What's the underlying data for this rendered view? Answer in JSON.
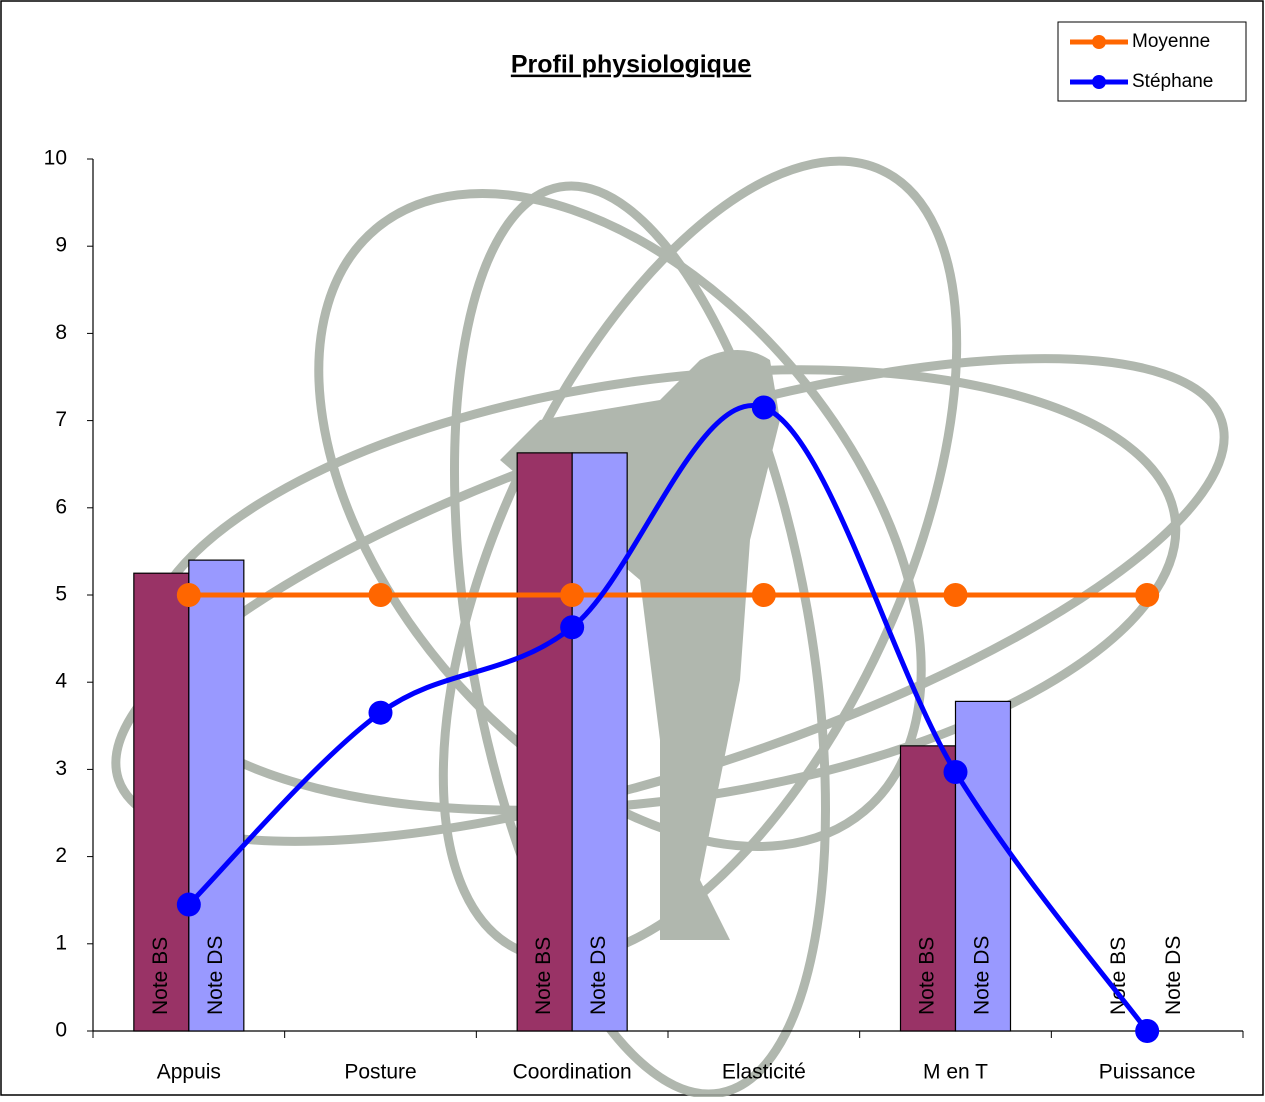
{
  "chart_data": {
    "type": "bar",
    "title": "Profil physiologique",
    "categories": [
      "Appuis",
      "Posture",
      "Coordination",
      "Elasticité",
      "M en T",
      "Puissance"
    ],
    "ylim": [
      0,
      10
    ],
    "yticks": [
      0,
      1,
      2,
      3,
      4,
      5,
      6,
      7,
      8,
      9,
      10
    ],
    "smooth": true,
    "legend": "top-right",
    "series": [
      {
        "name": "Note BS",
        "type": "bar",
        "color": "#993366",
        "values": [
          5.25,
          null,
          6.63,
          null,
          3.27,
          0
        ],
        "show_in_legend": false
      },
      {
        "name": "Note DS",
        "type": "bar",
        "color": "#9999ff",
        "values": [
          5.4,
          null,
          6.63,
          null,
          3.78,
          0
        ],
        "show_in_legend": false
      },
      {
        "name": "Moyenne",
        "type": "line",
        "color": "#ff6600",
        "values": [
          5,
          5,
          5,
          5,
          5,
          5
        ],
        "show_in_legend": true
      },
      {
        "name": "Stéphane",
        "type": "line",
        "color": "#0000ff",
        "values": [
          1.45,
          3.65,
          4.63,
          7.15,
          2.97,
          0
        ],
        "show_in_legend": true
      }
    ]
  }
}
